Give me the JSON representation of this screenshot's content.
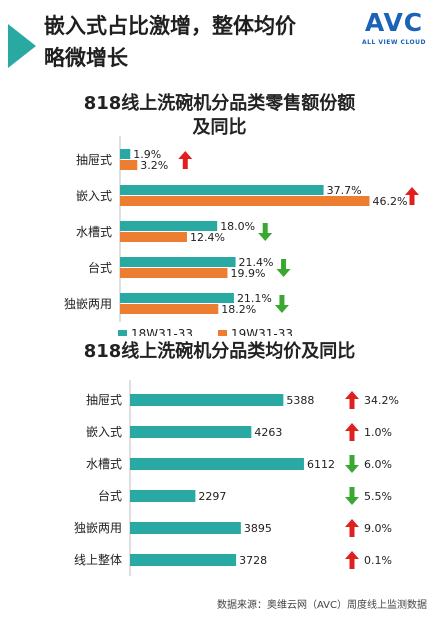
{
  "header": {
    "title_line1": "嵌入式占比激增，整体均价",
    "title_line2": "略微增长",
    "logo_text": "AVC",
    "logo_sub": "ALL VIEW CLOUD"
  },
  "chart_data": [
    {
      "type": "bar",
      "orientation": "horizontal",
      "title_line1": "818线上洗碗机分品类零售额份额",
      "title_line2": "及同比",
      "categories": [
        "抽屉式",
        "嵌入式",
        "水槽式",
        "台式",
        "独嵌两用"
      ],
      "series": [
        {
          "name": "18W31-33",
          "color": "#2aa9a3",
          "values": [
            1.9,
            37.7,
            18.0,
            21.4,
            21.1
          ],
          "labels": [
            "1.9%",
            "37.7%",
            "18.0%",
            "21.4%",
            "21.1%"
          ]
        },
        {
          "name": "19W31-33",
          "color": "#ec7d31",
          "values": [
            3.2,
            46.2,
            12.4,
            19.9,
            18.2
          ],
          "labels": [
            "3.2%",
            "46.2%",
            "12.4%",
            "19.9%",
            "18.2%"
          ]
        }
      ],
      "trend": [
        "up",
        "up",
        "down",
        "down",
        "down"
      ],
      "xlim": [
        0,
        50
      ],
      "legend_position": "bottom"
    },
    {
      "type": "bar",
      "orientation": "horizontal",
      "title": "818线上洗碗机分品类均价及同比",
      "categories": [
        "抽屉式",
        "嵌入式",
        "水槽式",
        "台式",
        "独嵌两用",
        "线上整体"
      ],
      "series": [
        {
          "color": "#2aa9a3",
          "values": [
            5388,
            4263,
            6112,
            2297,
            3895,
            3728
          ],
          "labels": [
            "5388",
            "4263",
            "6112",
            "2297",
            "3895",
            "3728"
          ]
        }
      ],
      "changes": [
        {
          "dir": "up",
          "label": "34.2%"
        },
        {
          "dir": "up",
          "label": "1.0%"
        },
        {
          "dir": "down",
          "label": "6.0%"
        },
        {
          "dir": "down",
          "label": "5.5%"
        },
        {
          "dir": "up",
          "label": "9.0%"
        },
        {
          "dir": "up",
          "label": "0.1%"
        }
      ],
      "xlim": [
        0,
        6500
      ]
    }
  ],
  "source": "数据来源：奥维云网（AVC）周度线上监测数据",
  "colors": {
    "teal": "#2aa9a3",
    "orange": "#ec7d31",
    "up": "#e02020",
    "down": "#3aa830"
  }
}
